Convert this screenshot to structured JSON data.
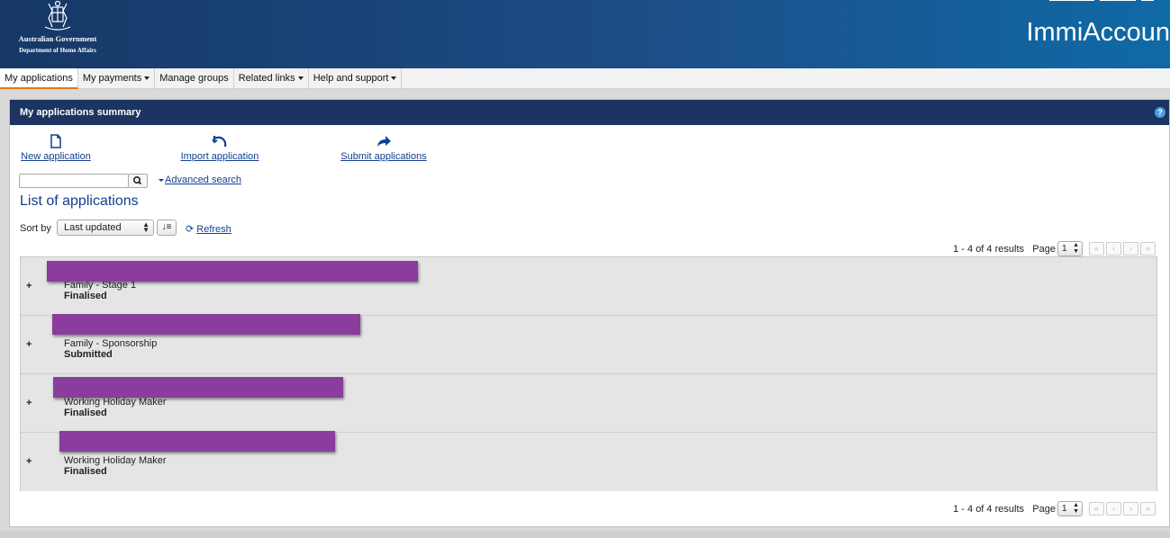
{
  "header": {
    "gov_name": "Australian Government",
    "dept_name": "Department of Home Affairs",
    "app_title": "ImmiAccoun"
  },
  "nav": {
    "items": [
      {
        "label": "My applications",
        "active": true,
        "dropdown": false
      },
      {
        "label": "My payments",
        "active": false,
        "dropdown": true
      },
      {
        "label": "Manage groups",
        "active": false,
        "dropdown": false
      },
      {
        "label": "Related links",
        "active": false,
        "dropdown": true
      },
      {
        "label": "Help and support",
        "active": false,
        "dropdown": true
      }
    ]
  },
  "panel": {
    "title": "My applications summary",
    "help_icon": "?",
    "actions": [
      {
        "label": "New application",
        "icon": "new-document-icon"
      },
      {
        "label": "Import application",
        "icon": "import-icon"
      },
      {
        "label": "Submit applications",
        "icon": "submit-arrow-icon"
      }
    ],
    "search": {
      "value": "",
      "placeholder": ""
    },
    "advanced_search": "Advanced search",
    "list_title": "List of applications",
    "sort": {
      "label": "Sort by",
      "selected": "Last updated"
    },
    "refresh": "Refresh",
    "pagination": {
      "results": "1 - 4 of 4 results",
      "page_label": "Page",
      "page": "1"
    },
    "applications": [
      {
        "type": "Family - Stage 1",
        "status": "Finalised"
      },
      {
        "type": "Family - Sponsorship",
        "status": "Submitted"
      },
      {
        "type": "Working Holiday Maker",
        "status": "Finalised"
      },
      {
        "type": "Working Holiday Maker",
        "status": "Finalised"
      }
    ]
  },
  "colors": {
    "header_dark": "#163866",
    "header_light": "#0f6aa6",
    "panel_head": "#1c3461",
    "link": "#123f8d",
    "active_tab": "#e8761a",
    "redaction": "#8a3d9d"
  }
}
